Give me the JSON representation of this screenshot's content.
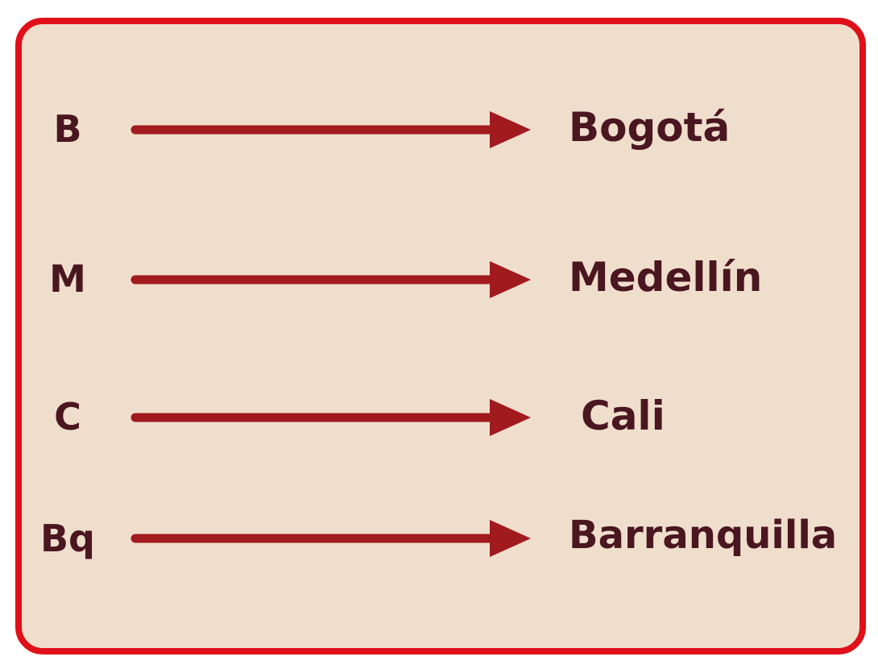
{
  "colors": {
    "border": "#e0101a",
    "panel_background": "#efdecc",
    "text": "#4a1620",
    "arrow": "#a11a1e"
  },
  "mappings": [
    {
      "abbreviation": "B",
      "city": "Bogotá"
    },
    {
      "abbreviation": "M",
      "city": "Medellín"
    },
    {
      "abbreviation": "C",
      "city": "Cali"
    },
    {
      "abbreviation": "Bq",
      "city": "Barranquilla"
    }
  ]
}
